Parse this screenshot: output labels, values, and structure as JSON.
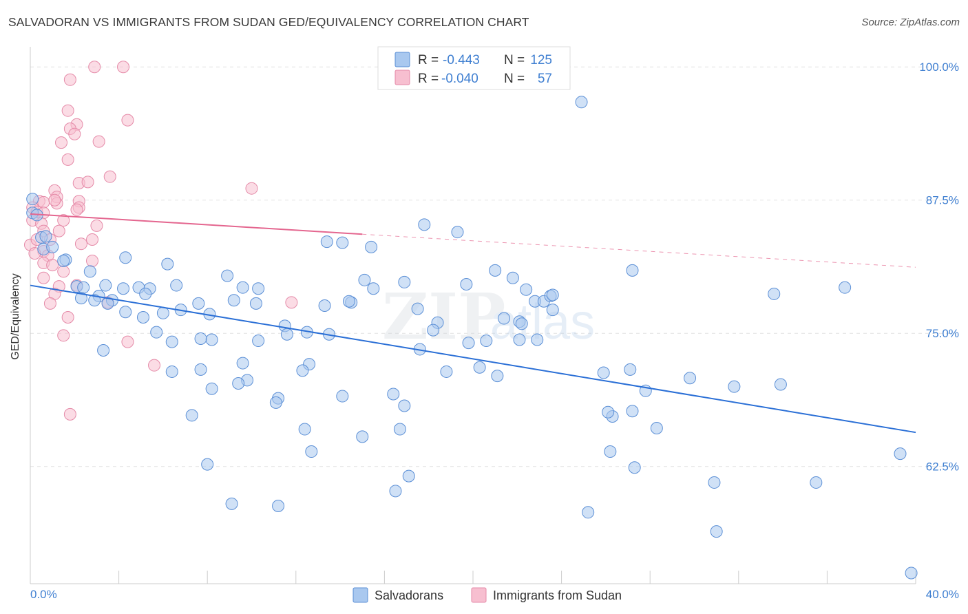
{
  "title": "SALVADORAN VS IMMIGRANTS FROM SUDAN GED/EQUIVALENCY CORRELATION CHART",
  "source": "Source: ZipAtlas.com",
  "watermark": {
    "zip": "ZIP",
    "atlas": "atlas"
  },
  "colors": {
    "blue_fill": "#a9c8ef",
    "blue_stroke": "#5b8fd6",
    "blue_line": "#2a6fd6",
    "pink_fill": "#f7bfd0",
    "pink_stroke": "#e58aa8",
    "pink_line": "#e4668f",
    "axis_text": "#3f7fd1",
    "grid": "#e2e2e2"
  },
  "legend_top": {
    "rows": [
      {
        "r_label": "R =",
        "r_value": "-0.443",
        "n_label": "N =",
        "n_value": "125"
      },
      {
        "r_label": "R =",
        "r_value": "-0.040",
        "n_label": "N =",
        "n_value": "57"
      }
    ]
  },
  "chart_data": {
    "type": "scatter",
    "title": "SALVADORAN VS IMMIGRANTS FROM SUDAN GED/EQUIVALENCY CORRELATION CHART",
    "xlabel": "",
    "ylabel": "GED/Equivalency",
    "xlim": [
      0,
      40
    ],
    "ylim": [
      51.5,
      101.5
    ],
    "x_tick_labels": [
      "0.0%",
      "40.0%"
    ],
    "y_ticks": [
      62.5,
      75.0,
      87.5,
      100.0
    ],
    "y_tick_labels": [
      "62.5%",
      "75.0%",
      "87.5%",
      "100.0%"
    ],
    "grid": true,
    "legend_position": "bottom-center",
    "series": [
      {
        "name": "Salvadorans",
        "color": "#a9c8ef",
        "r": -0.443,
        "n": 125,
        "trend": {
          "x": [
            0.0,
            40.0
          ],
          "y": [
            79.5,
            65.7
          ]
        },
        "points": [
          [
            0.1,
            87.6
          ],
          [
            0.1,
            86.3
          ],
          [
            0.3,
            86.1
          ],
          [
            0.5,
            84.0
          ],
          [
            0.6,
            82.9
          ],
          [
            0.7,
            84.1
          ],
          [
            1.0,
            83.1
          ],
          [
            1.6,
            81.9
          ],
          [
            1.5,
            81.8
          ],
          [
            2.7,
            80.8
          ],
          [
            2.1,
            79.4
          ],
          [
            2.4,
            79.3
          ],
          [
            3.4,
            79.5
          ],
          [
            3.1,
            78.5
          ],
          [
            2.3,
            78.3
          ],
          [
            2.9,
            78.1
          ],
          [
            3.7,
            78.1
          ],
          [
            3.5,
            77.8
          ],
          [
            4.2,
            79.2
          ],
          [
            4.9,
            79.3
          ],
          [
            5.4,
            79.2
          ],
          [
            5.2,
            78.7
          ],
          [
            4.3,
            77.0
          ],
          [
            5.1,
            76.5
          ],
          [
            6.0,
            76.9
          ],
          [
            6.8,
            77.2
          ],
          [
            5.7,
            75.1
          ],
          [
            3.3,
            73.4
          ],
          [
            6.6,
            79.5
          ],
          [
            6.2,
            81.5
          ],
          [
            4.3,
            82.1
          ],
          [
            7.6,
            77.8
          ],
          [
            8.1,
            76.8
          ],
          [
            8.9,
            80.4
          ],
          [
            9.6,
            79.3
          ],
          [
            10.3,
            79.2
          ],
          [
            10.2,
            77.8
          ],
          [
            9.2,
            78.1
          ],
          [
            8.2,
            74.4
          ],
          [
            7.7,
            74.5
          ],
          [
            6.4,
            71.4
          ],
          [
            7.7,
            71.6
          ],
          [
            8.2,
            69.8
          ],
          [
            7.3,
            67.3
          ],
          [
            6.4,
            74.2
          ],
          [
            9.6,
            72.2
          ],
          [
            9.8,
            70.6
          ],
          [
            9.4,
            70.3
          ],
          [
            11.5,
            75.7
          ],
          [
            11.6,
            74.9
          ],
          [
            10.3,
            74.3
          ],
          [
            12.5,
            75.1
          ],
          [
            12.6,
            72.1
          ],
          [
            12.3,
            71.5
          ],
          [
            11.2,
            68.9
          ],
          [
            11.1,
            68.5
          ],
          [
            12.4,
            66.0
          ],
          [
            13.5,
            74.9
          ],
          [
            13.3,
            77.6
          ],
          [
            14.5,
            77.9
          ],
          [
            14.4,
            78.0
          ],
          [
            15.1,
            80.0
          ],
          [
            15.5,
            79.2
          ],
          [
            14.1,
            83.5
          ],
          [
            13.4,
            83.6
          ],
          [
            15.4,
            83.1
          ],
          [
            16.9,
            79.8
          ],
          [
            17.5,
            77.3
          ],
          [
            17.8,
            85.2
          ],
          [
            18.4,
            76.0
          ],
          [
            18.2,
            75.3
          ],
          [
            19.3,
            84.5
          ],
          [
            19.7,
            79.6
          ],
          [
            17.6,
            73.5
          ],
          [
            18.8,
            71.4
          ],
          [
            19.8,
            74.1
          ],
          [
            20.3,
            71.8
          ],
          [
            20.6,
            74.3
          ],
          [
            21.1,
            71.0
          ],
          [
            21.4,
            76.4
          ],
          [
            22.1,
            76.1
          ],
          [
            22.2,
            75.9
          ],
          [
            22.1,
            74.4
          ],
          [
            21.0,
            80.9
          ],
          [
            21.8,
            80.2
          ],
          [
            22.4,
            79.1
          ],
          [
            22.8,
            78.0
          ],
          [
            23.2,
            78.0
          ],
          [
            23.5,
            78.5
          ],
          [
            23.6,
            77.2
          ],
          [
            24.9,
            96.7
          ],
          [
            22.9,
            74.4
          ],
          [
            23.6,
            78.6
          ],
          [
            27.1,
            71.6
          ],
          [
            27.8,
            69.6
          ],
          [
            25.9,
            71.3
          ],
          [
            26.3,
            67.2
          ],
          [
            26.1,
            67.6
          ],
          [
            27.2,
            67.7
          ],
          [
            27.3,
            62.4
          ],
          [
            27.2,
            80.9
          ],
          [
            28.3,
            66.1
          ],
          [
            26.2,
            63.9
          ],
          [
            25.2,
            58.2
          ],
          [
            29.8,
            70.8
          ],
          [
            31.0,
            56.4
          ],
          [
            30.9,
            61.0
          ],
          [
            31.8,
            70.0
          ],
          [
            33.6,
            78.7
          ],
          [
            33.9,
            70.2
          ],
          [
            35.5,
            61.0
          ],
          [
            36.8,
            79.3
          ],
          [
            39.3,
            63.7
          ],
          [
            39.8,
            52.5
          ],
          [
            16.4,
            69.3
          ],
          [
            16.9,
            68.2
          ],
          [
            16.7,
            66.0
          ],
          [
            15.0,
            65.3
          ],
          [
            12.7,
            63.9
          ],
          [
            14.1,
            69.1
          ],
          [
            11.2,
            58.8
          ],
          [
            9.1,
            59.0
          ],
          [
            8.0,
            62.7
          ],
          [
            16.5,
            60.2
          ],
          [
            17.1,
            61.6
          ]
        ]
      },
      {
        "name": "Immigrants from Sudan",
        "color": "#f7bfd0",
        "r": -0.04,
        "n": 57,
        "trend_solid": {
          "x": [
            0.0,
            15.0
          ],
          "y": [
            86.2,
            84.3
          ]
        },
        "trend_dashed": {
          "x": [
            15.0,
            40.0
          ],
          "y": [
            84.3,
            81.2
          ]
        },
        "points": [
          [
            2.9,
            100.0
          ],
          [
            4.2,
            100.0
          ],
          [
            1.8,
            98.8
          ],
          [
            1.7,
            95.9
          ],
          [
            4.4,
            95.0
          ],
          [
            2.1,
            94.6
          ],
          [
            1.8,
            94.2
          ],
          [
            2.0,
            93.7
          ],
          [
            1.4,
            92.9
          ],
          [
            3.1,
            93.0
          ],
          [
            1.7,
            91.3
          ],
          [
            3.6,
            89.7
          ],
          [
            2.2,
            89.1
          ],
          [
            2.6,
            89.2
          ],
          [
            1.1,
            88.4
          ],
          [
            10.0,
            88.6
          ],
          [
            1.2,
            87.8
          ],
          [
            0.4,
            87.4
          ],
          [
            0.6,
            87.3
          ],
          [
            1.2,
            87.2
          ],
          [
            1.1,
            87.5
          ],
          [
            2.2,
            87.4
          ],
          [
            0.1,
            86.8
          ],
          [
            0.3,
            86.4
          ],
          [
            0.6,
            86.3
          ],
          [
            2.2,
            86.8
          ],
          [
            2.1,
            86.6
          ],
          [
            0.1,
            85.6
          ],
          [
            1.5,
            85.6
          ],
          [
            0.5,
            85.3
          ],
          [
            3.0,
            85.1
          ],
          [
            0.6,
            84.6
          ],
          [
            1.3,
            84.6
          ],
          [
            0.0,
            83.3
          ],
          [
            0.3,
            83.8
          ],
          [
            0.9,
            83.8
          ],
          [
            2.3,
            83.4
          ],
          [
            2.8,
            83.8
          ],
          [
            0.6,
            82.7
          ],
          [
            0.8,
            82.3
          ],
          [
            2.8,
            81.8
          ],
          [
            1.5,
            80.8
          ],
          [
            0.6,
            80.2
          ],
          [
            1.3,
            79.4
          ],
          [
            2.1,
            79.5
          ],
          [
            1.1,
            78.7
          ],
          [
            0.9,
            77.8
          ],
          [
            11.8,
            77.9
          ],
          [
            3.5,
            77.9
          ],
          [
            1.7,
            76.5
          ],
          [
            1.5,
            74.8
          ],
          [
            4.4,
            74.2
          ],
          [
            5.6,
            72.0
          ],
          [
            1.8,
            67.4
          ],
          [
            0.6,
            81.6
          ],
          [
            0.2,
            82.5
          ],
          [
            1.0,
            81.4
          ]
        ]
      }
    ]
  }
}
